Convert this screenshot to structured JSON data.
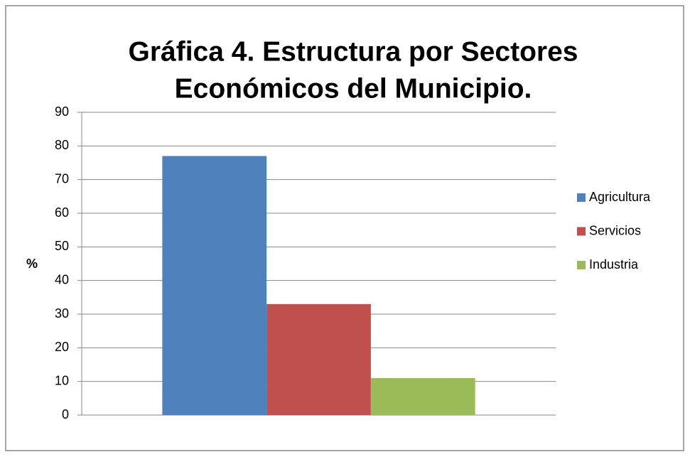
{
  "chart_data": {
    "type": "bar",
    "title": [
      "Gráfica 4. Estructura por Sectores",
      "Económicos del Municipio."
    ],
    "y_label": "%",
    "categories": [
      null
    ],
    "series": [
      {
        "name": "Agricultura",
        "color": "#4f81bd",
        "values": [
          77
        ]
      },
      {
        "name": "Servicios",
        "color": "#c0504d",
        "values": [
          33
        ]
      },
      {
        "name": "Industria",
        "color": "#9bbb59",
        "values": [
          11
        ]
      }
    ],
    "ylim": [
      0,
      90
    ],
    "yticks": [
      0,
      10,
      20,
      30,
      40,
      50,
      60,
      70,
      80,
      90
    ],
    "grid": true,
    "legend": "right"
  }
}
